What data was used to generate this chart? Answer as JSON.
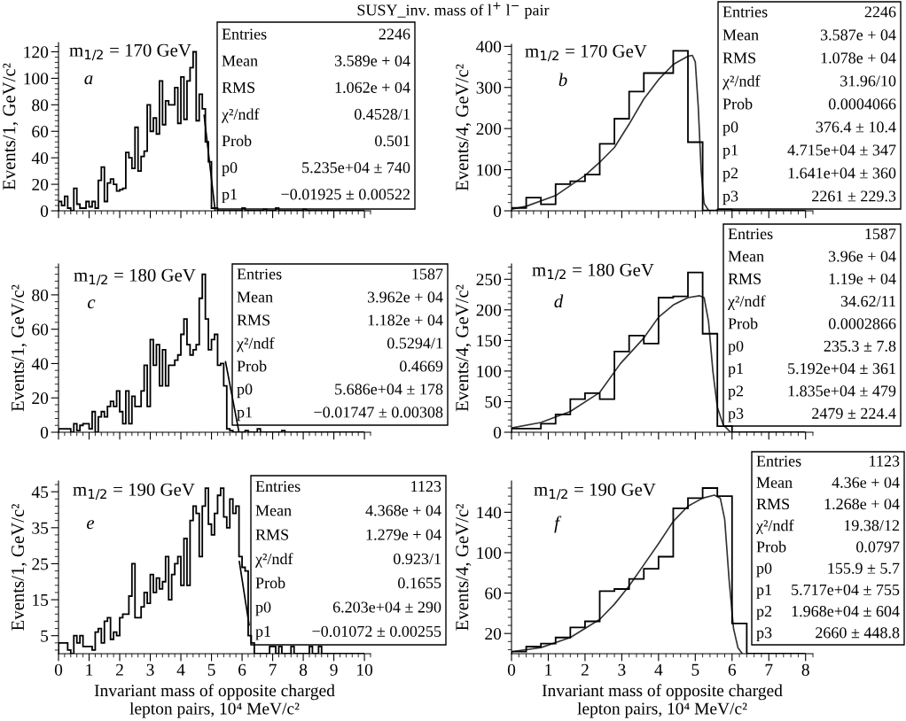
{
  "chart_data": [
    {
      "type": "histogram",
      "title": "SUSY_inv. mass of l$^{+}$ l$^{−}$ pair",
      "ylabel": "Events/1, GeV/c²",
      "xlim": [
        0,
        10.2
      ],
      "xticks": [
        0,
        1,
        2,
        3,
        4,
        5,
        6,
        7,
        8,
        9,
        10
      ],
      "ylim": [
        0,
        127
      ],
      "yticks": [
        0,
        20,
        40,
        60,
        80,
        100,
        120
      ],
      "tick_labels": "y",
      "color": "#000000",
      "annotations": [
        "m$_{1/2}$ = 170 GeV",
        "a",
        "Entries",
        "2246",
        "Mean",
        "3.589e + 04",
        "RMS",
        "1.062e + 04",
        "χ²/ndf",
        "0.4528/1",
        "Prob",
        "0.501",
        "p0",
        "5.235e+04 ± 740",
        "p1",
        "−0.01925 ± 0.00522"
      ],
      "bins": [
        0,
        0.1,
        0.2,
        0.3,
        0.4,
        0.5,
        0.6,
        0.7,
        0.8,
        0.9,
        1,
        1.1,
        1.2,
        1.3,
        1.4,
        1.5,
        1.6,
        1.7,
        1.8,
        1.9,
        2,
        2.1,
        2.2,
        2.3,
        2.4,
        2.5,
        2.6,
        2.7,
        2.8,
        2.9,
        3,
        3.1,
        3.2,
        3.3,
        3.4,
        3.5,
        3.6,
        3.7,
        3.8,
        3.9,
        4,
        4.1,
        4.2,
        4.3,
        4.4,
        4.5,
        4.6,
        4.7,
        4.8,
        4.9,
        5,
        5.1,
        5.2,
        5.3,
        5.4,
        5.5,
        5.6,
        5.7,
        5.8,
        5.9,
        6,
        6.1,
        6.2,
        6.3,
        6.4,
        6.5,
        6.6,
        6.7,
        6.8,
        6.9,
        7,
        7.1,
        7.2,
        7.3,
        7.4,
        7.5,
        7.6,
        7.7,
        7.8,
        7.9,
        8,
        8.1,
        8.2,
        8.3,
        8.4,
        8.5,
        8.6,
        8.7,
        8.8,
        8.9,
        9,
        9.1,
        9.2,
        9.3,
        9.4,
        9.5,
        9.6,
        9.7,
        9.8,
        9.9,
        10
      ],
      "values": [
        7,
        4,
        11,
        2,
        0,
        17,
        5,
        2,
        2,
        7,
        3,
        7,
        2,
        23,
        33,
        7,
        21,
        24,
        20,
        15,
        16,
        17,
        44,
        40,
        32,
        63,
        30,
        41,
        45,
        80,
        60,
        70,
        58,
        98,
        65,
        83,
        80,
        80,
        93,
        66,
        101,
        69,
        98,
        108,
        120,
        68,
        88,
        77,
        52,
        37,
        2,
        2,
        0,
        0,
        0,
        0,
        0,
        0,
        0,
        0,
        2,
        0,
        0,
        0,
        0,
        0,
        0,
        1,
        0,
        0,
        0,
        2,
        0,
        0,
        0,
        0,
        0,
        0,
        0,
        0,
        1,
        0,
        0,
        0,
        0,
        0,
        0,
        0,
        0,
        0,
        0,
        0,
        0,
        0,
        0,
        0,
        0,
        0,
        0,
        0
      ],
      "series": [
        {
          "type": "line",
          "color": "#000000",
          "x": [
            4.76,
            5.12
          ],
          "values": [
            72,
            0
          ]
        }
      ]
    },
    {
      "type": "histogram",
      "ylabel": "Events/4, GeV/c²",
      "xlim": [
        0,
        8.2
      ],
      "xticks": [
        0,
        1,
        2,
        3,
        4,
        5,
        6,
        7,
        8
      ],
      "ylim": [
        0,
        405
      ],
      "yticks": [
        0,
        100,
        200,
        300,
        400
      ],
      "tick_labels": "y",
      "color": "#000000",
      "annotations": [
        "m$_{1/2}$ = 170 GeV",
        "b",
        "Entries",
        "2246",
        "Mean",
        "3.587e + 04",
        "RMS",
        "1.078e + 04",
        "χ²/ndf",
        "31.96/10",
        "Prob",
        "0.0004066",
        "p0",
        "376.4 ± 10.4",
        "p1",
        "4.715e+04 ± 347",
        "p2",
        "1.641e+04 ± 360",
        "p3",
        "2261 ± 229.3"
      ],
      "bins": [
        0,
        0.4,
        0.8,
        1.2,
        1.6,
        2,
        2.4,
        2.8,
        3.2,
        3.6,
        4,
        4.4,
        4.8,
        5.2,
        5.6,
        6,
        6.4,
        6.8,
        7.2,
        7.6,
        8
      ],
      "values": [
        7,
        32,
        16,
        65,
        72,
        88,
        163,
        224,
        290,
        335,
        335,
        389,
        167,
        1,
        3,
        1,
        0,
        0,
        0,
        0
      ],
      "series": [
        {
          "type": "line",
          "color": "#333333",
          "x": [
            0,
            0.4,
            1.2,
            2,
            2.4,
            2.8,
            3.2,
            3.6,
            4,
            4.4,
            4.8,
            4.92,
            5,
            5.08,
            5.16,
            5.24,
            5.36,
            5.6
          ],
          "values": [
            4,
            11,
            37,
            86,
            118,
            154,
            211,
            272,
            319,
            356,
            376,
            378,
            362,
            254,
            97,
            18,
            1,
            0
          ]
        }
      ]
    },
    {
      "type": "histogram",
      "ylabel": "Events/1, GeV/c²",
      "xlim": [
        0,
        10.2
      ],
      "xticks": [
        0,
        1,
        2,
        3,
        4,
        5,
        6,
        7,
        8,
        9,
        10
      ],
      "ylim": [
        0,
        98
      ],
      "yticks": [
        0,
        20,
        40,
        60,
        80
      ],
      "tick_labels": "y",
      "color": "#000000",
      "annotations": [
        "m$_{1/2}$ = 180 GeV",
        "c",
        "Entries",
        "1587",
        "Mean",
        "3.962e + 04",
        "RMS",
        "1.182e + 04",
        "χ²/ndf",
        "0.5294/1",
        "Prob",
        "0.4669",
        "p0",
        "5.686e+04 ± 178",
        "p1",
        "−0.01747 ± 0.00308"
      ],
      "bins": [
        0,
        0.1,
        0.2,
        0.3,
        0.4,
        0.5,
        0.6,
        0.7,
        0.8,
        0.9,
        1,
        1.1,
        1.2,
        1.3,
        1.4,
        1.5,
        1.6,
        1.7,
        1.8,
        1.9,
        2,
        2.1,
        2.2,
        2.3,
        2.4,
        2.5,
        2.6,
        2.7,
        2.8,
        2.9,
        3,
        3.1,
        3.2,
        3.3,
        3.4,
        3.5,
        3.6,
        3.7,
        3.8,
        3.9,
        4,
        4.1,
        4.2,
        4.3,
        4.4,
        4.5,
        4.6,
        4.7,
        4.8,
        4.9,
        5,
        5.1,
        5.2,
        5.3,
        5.4,
        5.5,
        5.6,
        5.7,
        5.8,
        5.9,
        6,
        6.1,
        6.2,
        6.3,
        6.4,
        6.5,
        6.6,
        6.7,
        6.8,
        6.9,
        7,
        7.1,
        7.2,
        7.3,
        7.4,
        7.5,
        7.6,
        7.7,
        7.8,
        7.9,
        8,
        8.1,
        8.2,
        8.3,
        8.4,
        8.5,
        8.6,
        8.7,
        8.8,
        8.9,
        9,
        9.1,
        9.2,
        9.3,
        9.4,
        9.5,
        9.6,
        9.7,
        9.8,
        9.9,
        10
      ],
      "values": [
        2,
        2,
        2,
        2,
        0,
        5,
        1,
        4,
        5,
        5,
        2,
        12,
        0,
        9,
        12,
        9,
        15,
        18,
        15,
        24,
        12,
        5,
        24,
        5,
        21,
        15,
        15,
        24,
        39,
        15,
        54,
        39,
        51,
        27,
        48,
        27,
        39,
        39,
        42,
        45,
        57,
        66,
        51,
        45,
        48,
        51,
        78,
        92,
        66,
        48,
        54,
        57,
        39,
        40,
        27,
        2,
        1,
        0,
        0,
        0,
        0,
        1,
        0,
        0,
        0,
        2,
        0,
        0,
        0,
        0,
        0,
        0,
        0,
        1,
        0,
        0,
        0,
        0,
        0,
        0,
        0,
        0,
        0,
        0,
        0,
        0,
        0,
        0,
        0,
        0,
        0,
        0,
        0,
        0,
        0,
        0,
        0,
        0,
        0,
        0
      ],
      "series": [
        {
          "type": "line",
          "color": "#000000",
          "x": [
            5.46,
            5.9
          ],
          "values": [
            41,
            0
          ]
        }
      ]
    },
    {
      "type": "histogram",
      "ylabel": "Events/4, GeV/c²",
      "xlim": [
        0,
        8.2
      ],
      "xticks": [
        0,
        1,
        2,
        3,
        4,
        5,
        6,
        7,
        8
      ],
      "ylim": [
        0,
        275
      ],
      "yticks": [
        0,
        50,
        100,
        150,
        200,
        250
      ],
      "tick_labels": "y",
      "color": "#000000",
      "annotations": [
        "m$_{1/2}$ = 180 GeV",
        "d",
        "Entries",
        "1587",
        "Mean",
        "3.96e + 04",
        "RMS",
        "1.19e + 04",
        "χ²/ndf",
        "34.62/11",
        "Prob",
        "0.0002866",
        "p0",
        "235.3 ± 7.8",
        "p1",
        "5.192e+04 ± 361",
        "p2",
        "1.835e+04 ± 479",
        "p3",
        "2479 ± 224.4"
      ],
      "bins": [
        0,
        0.4,
        0.8,
        1.2,
        1.6,
        2,
        2.4,
        2.8,
        3.2,
        3.6,
        4,
        4.4,
        4.8,
        5.2,
        5.6,
        6,
        6.4,
        6.8,
        7.2,
        7.6,
        8
      ],
      "values": [
        6,
        6,
        14,
        29,
        54,
        64,
        54,
        132,
        158,
        145,
        220,
        222,
        261,
        161,
        10,
        0,
        0,
        0,
        0,
        0
      ],
      "series": [
        {
          "type": "line",
          "color": "#333333",
          "x": [
            0,
            0.8,
            1.6,
            2.4,
            2.96,
            3.6,
            4,
            4.4,
            4.8,
            5.12,
            5.24,
            5.36,
            5.48,
            5.6,
            5.76,
            5.96
          ],
          "values": [
            7,
            16,
            34,
            65,
            112,
            154,
            188,
            208,
            220,
            223,
            220,
            181,
            99,
            41,
            12,
            0
          ]
        }
      ]
    },
    {
      "type": "histogram",
      "ylabel": "Events/1, GeV/c²",
      "xlabel": "Invariant mass of opposite charged\nlepton pairs, 10⁴ MeV/c²",
      "xlim": [
        0,
        10.2
      ],
      "xticks": [
        0,
        1,
        2,
        3,
        4,
        5,
        6,
        7,
        8,
        9,
        10
      ],
      "ylim": [
        0,
        48
      ],
      "yticks": [
        5,
        15,
        25,
        35,
        45
      ],
      "color": "#000000",
      "annotations": [
        "m$_{1/2}$ = 190 GeV",
        "e",
        "Entries",
        "1123",
        "Mean",
        "4.368e + 04",
        "RMS",
        "1.279e + 04",
        "χ²/ndf",
        "0.923/1",
        "Prob",
        "0.1655",
        "p0",
        "6.203e+04 ± 290",
        "p1",
        "−0.01072 ± 0.00255"
      ],
      "bins": [
        0,
        0.1,
        0.2,
        0.3,
        0.4,
        0.5,
        0.6,
        0.7,
        0.8,
        0.9,
        1,
        1.1,
        1.2,
        1.3,
        1.4,
        1.5,
        1.6,
        1.7,
        1.8,
        1.9,
        2,
        2.1,
        2.2,
        2.3,
        2.4,
        2.5,
        2.6,
        2.7,
        2.8,
        2.9,
        3,
        3.1,
        3.2,
        3.3,
        3.4,
        3.5,
        3.6,
        3.7,
        3.8,
        3.9,
        4,
        4.1,
        4.2,
        4.3,
        4.4,
        4.5,
        4.6,
        4.7,
        4.8,
        4.9,
        5,
        5.1,
        5.2,
        5.3,
        5.4,
        5.5,
        5.6,
        5.7,
        5.8,
        5.9,
        6,
        6.1,
        6.2,
        6.3,
        6.4,
        6.5,
        6.6,
        6.7,
        6.8,
        6.9,
        7,
        7.1,
        7.2,
        7.3,
        7.4,
        7.5,
        7.6,
        7.7,
        7.8,
        7.9,
        8,
        8.1,
        8.2,
        8.3,
        8.4,
        8.5,
        8.6,
        8.7,
        8.8,
        8.9,
        9,
        9.1,
        9.2,
        9.3,
        9.4,
        9.5,
        9.6,
        9.7,
        9.8,
        9.9,
        10
      ],
      "values": [
        3,
        3,
        3,
        1,
        0,
        5,
        3,
        5,
        2,
        2,
        2,
        1,
        6,
        7,
        3,
        9,
        10,
        4,
        6,
        5,
        10,
        11,
        11,
        16,
        25,
        10,
        10,
        13,
        17,
        14,
        22,
        17,
        21,
        18,
        20,
        27,
        15,
        22,
        25,
        27,
        19,
        32,
        19,
        37,
        41,
        39,
        27,
        41,
        46,
        36,
        33,
        39,
        44,
        46,
        38,
        35,
        43,
        39,
        41,
        27,
        24,
        23,
        5,
        3,
        0,
        0,
        0,
        0,
        0,
        2,
        2,
        0,
        2,
        0,
        0,
        0,
        2,
        0,
        0,
        0,
        0,
        0,
        2,
        0,
        0,
        2,
        0,
        0,
        0,
        0,
        0,
        0,
        0,
        0,
        0,
        0,
        0,
        0,
        0,
        0
      ],
      "series": [
        {
          "type": "line",
          "color": "#000000",
          "x": [
            5.91,
            6.23
          ],
          "values": [
            25.6,
            8
          ]
        }
      ]
    },
    {
      "type": "histogram",
      "ylabel": "Events/4, GeV/c²",
      "xlabel": "Invariant mass of opposite charged\nlepton pairs, 10⁴ MeV/c²",
      "xlim": [
        0,
        8.2
      ],
      "xticks": [
        0,
        1,
        2,
        3,
        4,
        5,
        6,
        7,
        8
      ],
      "ylim": [
        0,
        171
      ],
      "yticks": [
        20,
        60,
        100,
        140
      ],
      "color": "#000000",
      "annotations": [
        "m$_{1/2}$ = 190 GeV",
        "f",
        "Entries",
        "1123",
        "Mean",
        "4.36e + 04",
        "RMS",
        "1.268e + 04",
        "χ²/ndf",
        "19.38/12",
        "Prob",
        "0.0797",
        "p0",
        "155.9 ± 5.7",
        "p1",
        "5.717e+04 ± 755",
        "p2",
        "1.968e+04 ± 604",
        "p3",
        "2660 ± 448.8"
      ],
      "bins": [
        0,
        0.4,
        0.8,
        1.2,
        1.6,
        2,
        2.4,
        2.8,
        3.2,
        3.6,
        4,
        4.4,
        4.8,
        5.2,
        5.6,
        6,
        6.4,
        6.8,
        7.2,
        7.6,
        8
      ],
      "values": [
        2,
        7,
        10,
        16,
        26,
        32,
        62,
        64,
        74,
        84,
        96,
        144,
        154,
        164,
        156,
        30,
        0,
        0,
        0,
        0
      ],
      "series": [
        {
          "type": "line",
          "color": "#333333",
          "x": [
            0,
            0.8,
            1.6,
            2.4,
            2.8,
            3.2,
            3.6,
            4,
            4.4,
            4.8,
            5.2,
            5.52,
            5.68,
            5.8,
            5.92,
            6.04,
            6.16,
            6.28
          ],
          "values": [
            2,
            6,
            16,
            34,
            49,
            67,
            88,
            109,
            131,
            146,
            154,
            157,
            154,
            133,
            73,
            25,
            6,
            0
          ]
        }
      ]
    }
  ]
}
